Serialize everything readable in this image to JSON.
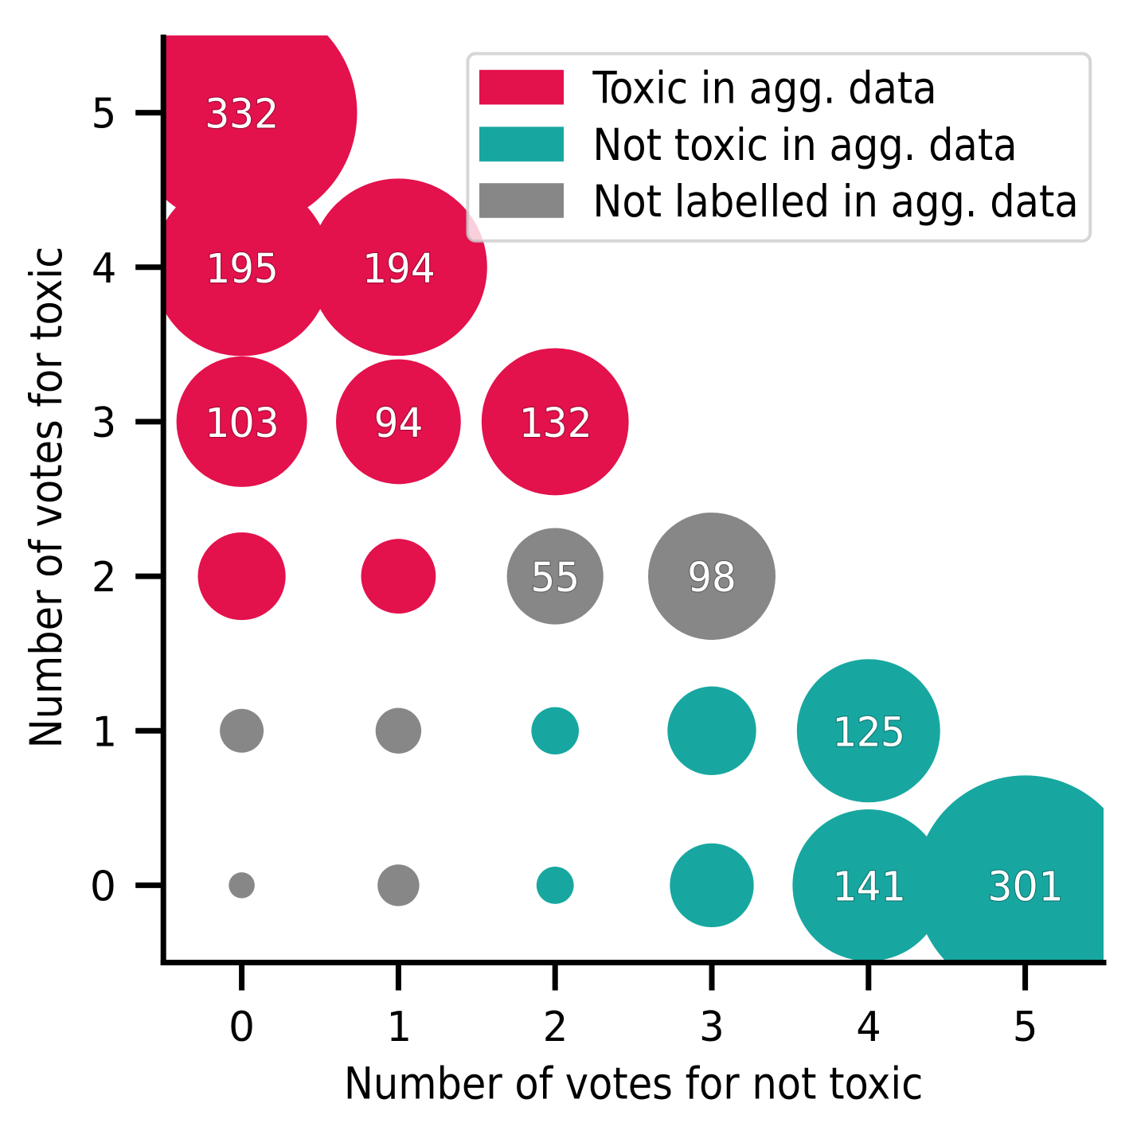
{
  "chart_data": {
    "type": "scatter",
    "subtype": "bubble",
    "title": "",
    "xlabel": "Number of votes for not toxic",
    "ylabel": "Number of votes for toxic",
    "x_ticks": [
      "0",
      "1",
      "2",
      "3",
      "4",
      "5"
    ],
    "y_ticks": [
      "0",
      "1",
      "2",
      "3",
      "4",
      "5"
    ],
    "xlim": [
      -0.5,
      5.5
    ],
    "ylim": [
      -0.5,
      5.5
    ],
    "grid": false,
    "background_color": "#ffffff",
    "text_color": "#000000",
    "bubble_label_color": "#ffffff",
    "label_min_count": 50,
    "legend": {
      "position": "upper right",
      "entries": [
        {
          "key": "toxic",
          "label": "Toxic in agg. data",
          "color": "#e3114c"
        },
        {
          "key": "not_toxic",
          "label": "Not toxic in agg. data",
          "color": "#17a7a0"
        },
        {
          "key": "not_labelled",
          "label": "Not labelled in agg. data",
          "color": "#878787"
        }
      ]
    },
    "points": [
      {
        "x": 0,
        "y": 5,
        "count": 332,
        "label": "332",
        "category": "toxic"
      },
      {
        "x": 0,
        "y": 4,
        "count": 195,
        "label": "195",
        "category": "toxic"
      },
      {
        "x": 1,
        "y": 4,
        "count": 194,
        "label": "194",
        "category": "toxic"
      },
      {
        "x": 0,
        "y": 3,
        "count": 103,
        "label": "103",
        "category": "toxic"
      },
      {
        "x": 1,
        "y": 3,
        "count": 94,
        "label": "94",
        "category": "toxic"
      },
      {
        "x": 2,
        "y": 3,
        "count": 132,
        "label": "132",
        "category": "toxic"
      },
      {
        "x": 0,
        "y": 2,
        "count": 45,
        "label": "",
        "category": "toxic"
      },
      {
        "x": 1,
        "y": 2,
        "count": 32,
        "label": "",
        "category": "toxic"
      },
      {
        "x": 2,
        "y": 2,
        "count": 55,
        "label": "55",
        "category": "not_labelled"
      },
      {
        "x": 3,
        "y": 2,
        "count": 98,
        "label": "98",
        "category": "not_labelled"
      },
      {
        "x": 0,
        "y": 1,
        "count": 10,
        "label": "",
        "category": "not_labelled"
      },
      {
        "x": 1,
        "y": 1,
        "count": 11,
        "label": "",
        "category": "not_labelled"
      },
      {
        "x": 2,
        "y": 1,
        "count": 12,
        "label": "",
        "category": "not_toxic"
      },
      {
        "x": 3,
        "y": 1,
        "count": 46,
        "label": "",
        "category": "not_toxic"
      },
      {
        "x": 4,
        "y": 1,
        "count": 125,
        "label": "125",
        "category": "not_toxic"
      },
      {
        "x": 0,
        "y": 0,
        "count": 3,
        "label": "",
        "category": "not_labelled"
      },
      {
        "x": 1,
        "y": 0,
        "count": 9,
        "label": "",
        "category": "not_labelled"
      },
      {
        "x": 2,
        "y": 0,
        "count": 7,
        "label": "",
        "category": "not_toxic"
      },
      {
        "x": 3,
        "y": 0,
        "count": 41,
        "label": "",
        "category": "not_toxic"
      },
      {
        "x": 4,
        "y": 0,
        "count": 141,
        "label": "141",
        "category": "not_toxic"
      },
      {
        "x": 5,
        "y": 0,
        "count": 301,
        "label": "301",
        "category": "not_toxic"
      }
    ]
  }
}
